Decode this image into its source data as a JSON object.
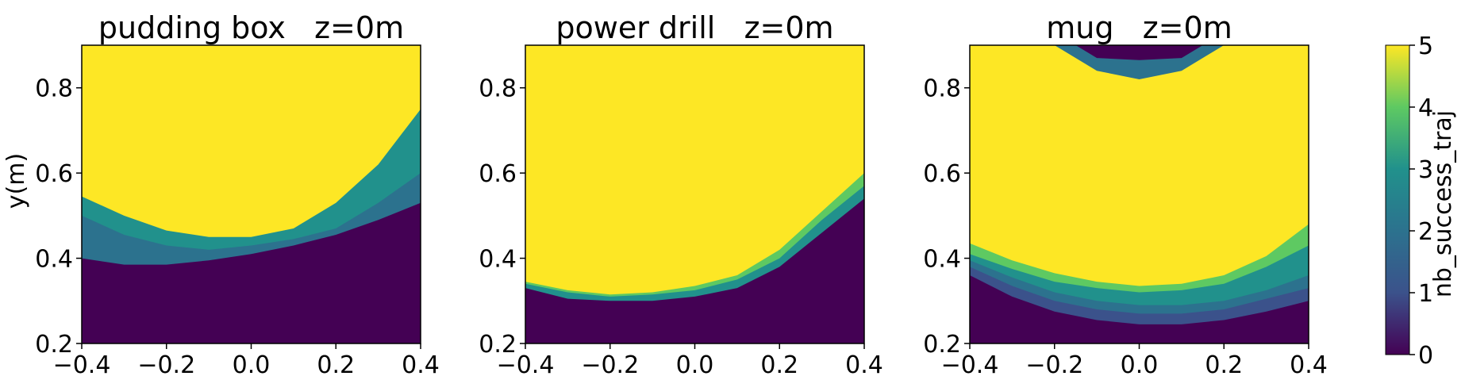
{
  "chart_data": {
    "type": "heatmap",
    "colormap": "viridis",
    "ylabel": "y(m)",
    "panels": [
      {
        "title": "pudding box   z=0m",
        "xlim": [
          -0.4,
          0.4
        ],
        "ylim": [
          0.2,
          0.9
        ],
        "xticks": [
          "−0.4",
          "−0.2",
          "0.0",
          "0.2",
          "0.4"
        ],
        "yticks": [
          "0.2",
          "0.4",
          "0.6",
          "0.8"
        ],
        "regions": [
          {
            "value": 0,
            "x": [
              -0.4,
              -0.3,
              -0.2,
              -0.1,
              0.0,
              0.1,
              0.2,
              0.3,
              0.4
            ],
            "y": [
              0.2,
              0.2,
              0.2,
              0.2,
              0.2,
              0.2,
              0.2,
              0.2,
              0.2
            ]
          },
          {
            "value": 2,
            "x": [
              -0.4,
              -0.3,
              -0.2,
              -0.1,
              0.0,
              0.1,
              0.2,
              0.3,
              0.4
            ],
            "y": [
              0.4,
              0.385,
              0.385,
              0.395,
              0.41,
              0.43,
              0.455,
              0.49,
              0.53
            ]
          },
          {
            "value": 3,
            "x": [
              -0.4,
              -0.3,
              -0.2,
              -0.1,
              0.0,
              0.1,
              0.2,
              0.3,
              0.4
            ],
            "y": [
              0.5,
              0.455,
              0.43,
              0.42,
              0.43,
              0.445,
              0.47,
              0.53,
              0.6
            ]
          },
          {
            "value": 5,
            "x": [
              -0.4,
              -0.3,
              -0.2,
              -0.1,
              0.0,
              0.1,
              0.2,
              0.3,
              0.4
            ],
            "y": [
              0.545,
              0.5,
              0.465,
              0.45,
              0.45,
              0.47,
              0.53,
              0.62,
              0.75
            ]
          }
        ]
      },
      {
        "title": "power drill   z=0m",
        "xlim": [
          -0.4,
          0.4
        ],
        "ylim": [
          0.2,
          0.9
        ],
        "xticks": [
          "−0.4",
          "−0.2",
          "0.0",
          "0.2",
          "0.4"
        ],
        "yticks": [
          "0.2",
          "0.4",
          "0.6",
          "0.8"
        ],
        "regions": [
          {
            "value": 0,
            "x": [
              -0.4,
              -0.3,
              -0.2,
              -0.1,
              0.0,
              0.1,
              0.2,
              0.3,
              0.4
            ],
            "y": [
              0.2,
              0.2,
              0.2,
              0.2,
              0.2,
              0.2,
              0.2,
              0.2,
              0.2
            ]
          },
          {
            "value": 3,
            "x": [
              -0.4,
              -0.3,
              -0.2,
              -0.1,
              0.0,
              0.1,
              0.2,
              0.3,
              0.4
            ],
            "y": [
              0.33,
              0.305,
              0.3,
              0.3,
              0.31,
              0.33,
              0.38,
              0.46,
              0.54
            ]
          },
          {
            "value": 4,
            "x": [
              -0.4,
              -0.3,
              -0.2,
              -0.1,
              0.0,
              0.1,
              0.2,
              0.3,
              0.4
            ],
            "y": [
              0.34,
              0.32,
              0.31,
              0.315,
              0.325,
              0.35,
              0.4,
              0.49,
              0.57
            ]
          },
          {
            "value": 5,
            "x": [
              -0.4,
              -0.3,
              -0.2,
              -0.1,
              0.0,
              0.1,
              0.2,
              0.3,
              0.4
            ],
            "y": [
              0.345,
              0.325,
              0.315,
              0.32,
              0.335,
              0.36,
              0.42,
              0.51,
              0.6
            ]
          }
        ]
      },
      {
        "title": "mug   z=0m",
        "xlim": [
          -0.4,
          0.4
        ],
        "ylim": [
          0.2,
          0.9
        ],
        "xticks": [
          "−0.4",
          "−0.2",
          "0.0",
          "0.2",
          "0.4"
        ],
        "yticks": [
          "0.2",
          "0.4",
          "0.6",
          "0.8"
        ],
        "regions": [
          {
            "value": 0,
            "x": [
              -0.4,
              -0.3,
              -0.2,
              -0.1,
              0.0,
              0.1,
              0.2,
              0.3,
              0.4
            ],
            "y": [
              0.2,
              0.2,
              0.2,
              0.2,
              0.2,
              0.2,
              0.2,
              0.2,
              0.2
            ]
          },
          {
            "value": 1,
            "x": [
              -0.4,
              -0.3,
              -0.2,
              -0.1,
              0.0,
              0.1,
              0.2,
              0.3,
              0.4
            ],
            "y": [
              0.36,
              0.31,
              0.275,
              0.255,
              0.245,
              0.245,
              0.255,
              0.275,
              0.3
            ]
          },
          {
            "value": 2,
            "x": [
              -0.4,
              -0.3,
              -0.2,
              -0.1,
              0.0,
              0.1,
              0.2,
              0.3,
              0.4
            ],
            "y": [
              0.38,
              0.335,
              0.3,
              0.28,
              0.27,
              0.27,
              0.28,
              0.305,
              0.33
            ]
          },
          {
            "value": 3,
            "x": [
              -0.4,
              -0.3,
              -0.2,
              -0.1,
              0.0,
              0.1,
              0.2,
              0.3,
              0.4
            ],
            "y": [
              0.395,
              0.355,
              0.32,
              0.3,
              0.29,
              0.29,
              0.3,
              0.325,
              0.36
            ]
          },
          {
            "value": 4,
            "x": [
              -0.4,
              -0.3,
              -0.2,
              -0.1,
              0.0,
              0.1,
              0.2,
              0.3,
              0.4
            ],
            "y": [
              0.41,
              0.375,
              0.345,
              0.33,
              0.32,
              0.325,
              0.34,
              0.38,
              0.43
            ]
          },
          {
            "value": 5,
            "x": [
              -0.4,
              -0.3,
              -0.2,
              -0.1,
              0.0,
              0.1,
              0.2,
              0.3,
              0.4
            ],
            "y": [
              0.435,
              0.395,
              0.365,
              0.345,
              0.335,
              0.34,
              0.36,
              0.405,
              0.48
            ]
          }
        ],
        "top_regions": [
          {
            "value": 0,
            "x": [
              -0.15,
              -0.1,
              0.0,
              0.1,
              0.15
            ],
            "y": [
              0.9,
              0.87,
              0.865,
              0.87,
              0.9
            ]
          },
          {
            "value": 2,
            "x": [
              -0.2,
              -0.1,
              0.0,
              0.1,
              0.2
            ],
            "y": [
              0.9,
              0.84,
              0.82,
              0.84,
              0.9
            ]
          }
        ]
      }
    ],
    "colorbar": {
      "label": "nb_success_traj",
      "range": [
        0,
        5
      ],
      "ticks": [
        "0",
        "1",
        "2",
        "3",
        "4",
        "5"
      ]
    },
    "colors": {
      "0": "#440154",
      "1": "#3b528b",
      "2": "#2c728e",
      "3": "#21918c",
      "4": "#5ec962",
      "5": "#fde725"
    }
  }
}
